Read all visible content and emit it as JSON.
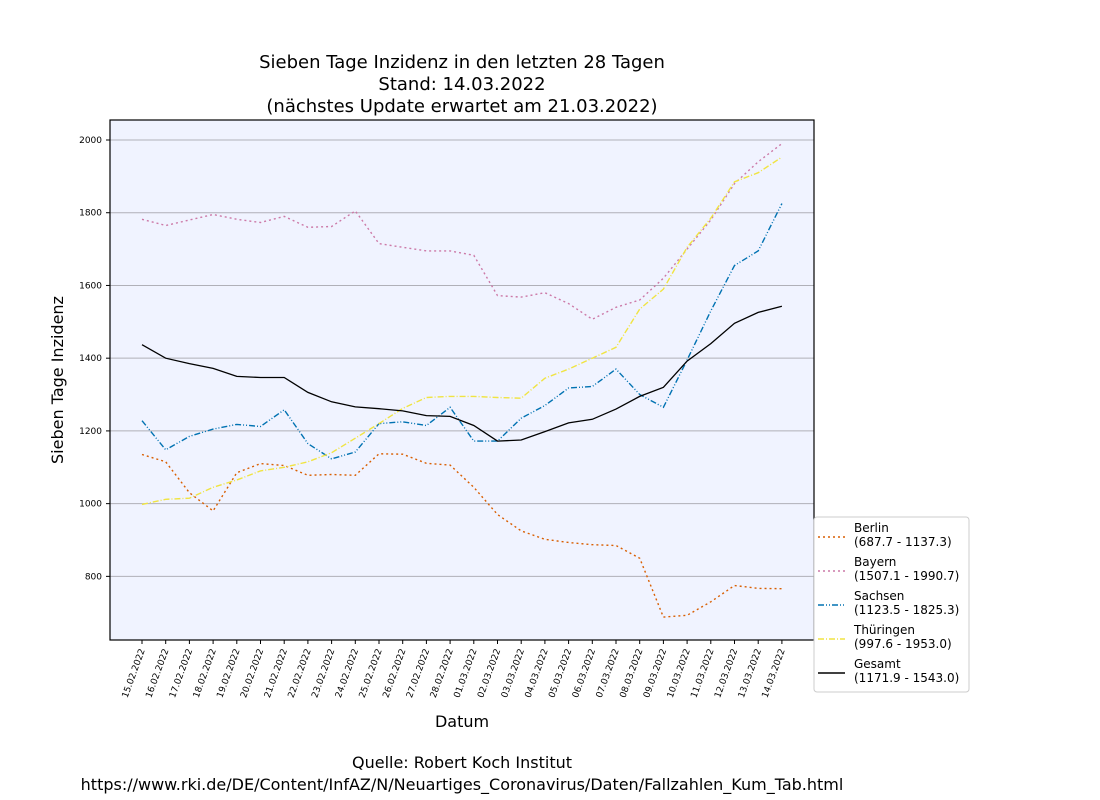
{
  "chart_data": {
    "type": "line",
    "title_lines": [
      "Sieben Tage Inzidenz in den letzten 28 Tagen",
      "Stand: 14.03.2022",
      "(nächstes Update erwartet am 21.03.2022)"
    ],
    "xlabel": "Datum",
    "ylabel": "Sieben Tage Inzidenz",
    "ylim": [
      625,
      2055
    ],
    "yticks": [
      800,
      1000,
      1200,
      1400,
      1600,
      1800,
      2000
    ],
    "grid": "horizontal",
    "legend_position": "right-outside-bottom",
    "x": [
      "15.02.2022",
      "16.02.2022",
      "17.02.2022",
      "18.02.2022",
      "19.02.2022",
      "20.02.2022",
      "21.02.2022",
      "22.02.2022",
      "23.02.2022",
      "24.02.2022",
      "25.02.2022",
      "26.02.2022",
      "27.02.2022",
      "28.02.2022",
      "01.03.2022",
      "02.03.2022",
      "03.03.2022",
      "04.03.2022",
      "05.03.2022",
      "06.03.2022",
      "07.03.2022",
      "08.03.2022",
      "09.03.2022",
      "10.03.2022",
      "11.03.2022",
      "12.03.2022",
      "13.03.2022",
      "14.03.2022"
    ],
    "series": [
      {
        "name": "Berlin",
        "range_label": "(687.7 - 1137.3)",
        "color": "#d95f02",
        "dash": "2,3",
        "values": [
          1135,
          1115,
          1030,
          980,
          1085,
          1110,
          1105,
          1078,
          1080,
          1078,
          1137,
          1136,
          1111,
          1106,
          1045,
          970,
          925,
          902,
          893,
          887,
          885,
          850,
          688,
          693,
          730,
          775,
          767,
          766
        ]
      },
      {
        "name": "Bayern",
        "range_label": "(1507.1 - 1990.7)",
        "color": "#cc79a7",
        "dash": "2,3",
        "values": [
          1782,
          1765,
          1780,
          1795,
          1782,
          1773,
          1790,
          1760,
          1762,
          1805,
          1715,
          1705,
          1695,
          1695,
          1683,
          1572,
          1568,
          1580,
          1550,
          1507,
          1540,
          1560,
          1620,
          1700,
          1780,
          1880,
          1940,
          1990
        ]
      },
      {
        "name": "Sachsen",
        "range_label": "(1123.5 - 1825.3)",
        "color": "#0072b2",
        "dash": "6,2,1,2,1,2",
        "values": [
          1228,
          1148,
          1185,
          1205,
          1218,
          1212,
          1258,
          1165,
          1123,
          1142,
          1220,
          1225,
          1215,
          1265,
          1172,
          1172,
          1235,
          1270,
          1318,
          1322,
          1370,
          1300,
          1265,
          1395,
          1530,
          1655,
          1695,
          1825
        ]
      },
      {
        "name": "Thüringen",
        "range_label": "(997.6 - 1953.0)",
        "color": "#f0e442",
        "dash": "6,2,1,2",
        "values": [
          998,
          1012,
          1015,
          1045,
          1065,
          1090,
          1100,
          1115,
          1140,
          1180,
          1220,
          1262,
          1292,
          1295,
          1295,
          1292,
          1290,
          1345,
          1370,
          1400,
          1430,
          1535,
          1590,
          1705,
          1785,
          1885,
          1910,
          1953
        ]
      },
      {
        "name": "Gesamt",
        "range_label": "(1171.9 - 1543.0)",
        "color": "#000000",
        "dash": "",
        "values": [
          1437,
          1400,
          1385,
          1372,
          1350,
          1347,
          1347,
          1306,
          1280,
          1266,
          1261,
          1255,
          1242,
          1240,
          1215,
          1172,
          1175,
          1198,
          1222,
          1232,
          1260,
          1295,
          1320,
          1392,
          1440,
          1496,
          1526,
          1543
        ]
      }
    ],
    "source_lines": [
      "Quelle: Robert Koch Institut",
      "https://www.rki.de/DE/Content/InfAZ/N/Neuartiges_Coronavirus/Daten/Fallzahlen_Kum_Tab.html"
    ]
  }
}
